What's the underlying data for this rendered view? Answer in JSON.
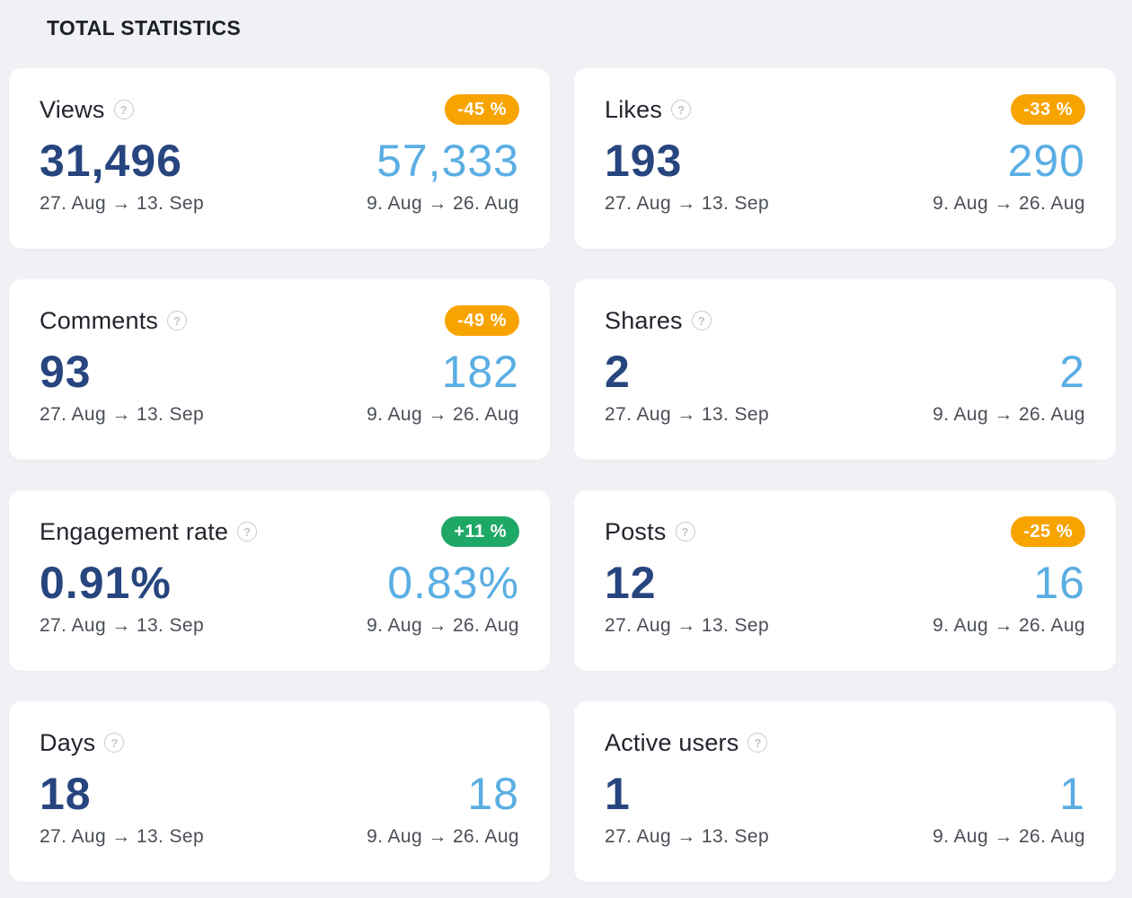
{
  "section_title": "TOTAL STATISTICS",
  "help_glyph": "?",
  "cards": [
    {
      "title": "Views",
      "badge": "-45 %",
      "badge_type": "neg",
      "current": "31,496",
      "previous": "57,333",
      "current_period": "27. Aug → 13. Sep",
      "previous_period": "9. Aug → 26. Aug"
    },
    {
      "title": "Likes",
      "badge": "-33 %",
      "badge_type": "neg",
      "current": "193",
      "previous": "290",
      "current_period": "27. Aug → 13. Sep",
      "previous_period": "9. Aug → 26. Aug"
    },
    {
      "title": "Comments",
      "badge": "-49 %",
      "badge_type": "neg",
      "current": "93",
      "previous": "182",
      "current_period": "27. Aug → 13. Sep",
      "previous_period": "9. Aug → 26. Aug"
    },
    {
      "title": "Shares",
      "badge": "",
      "badge_type": "none",
      "current": "2",
      "previous": "2",
      "current_period": "27. Aug → 13. Sep",
      "previous_period": "9. Aug → 26. Aug"
    },
    {
      "title": "Engagement rate",
      "badge": "+11 %",
      "badge_type": "pos",
      "current": "0.91%",
      "previous": "0.83%",
      "current_period": "27. Aug → 13. Sep",
      "previous_period": "9. Aug → 26. Aug"
    },
    {
      "title": "Posts",
      "badge": "-25 %",
      "badge_type": "neg",
      "current": "12",
      "previous": "16",
      "current_period": "27. Aug → 13. Sep",
      "previous_period": "9. Aug → 26. Aug"
    },
    {
      "title": "Days",
      "badge": "",
      "badge_type": "none",
      "current": "18",
      "previous": "18",
      "current_period": "27. Aug → 13. Sep",
      "previous_period": "9. Aug → 26. Aug"
    },
    {
      "title": "Active users",
      "badge": "",
      "badge_type": "none",
      "current": "1",
      "previous": "1",
      "current_period": "27. Aug → 13. Sep",
      "previous_period": "9. Aug → 26. Aug"
    }
  ],
  "colors": {
    "background": "#f0f1f5",
    "card": "#ffffff",
    "current_value": "#27457e",
    "previous_value": "#5aaee3",
    "badge_negative": "#f7a300",
    "badge_positive": "#1ea866"
  }
}
